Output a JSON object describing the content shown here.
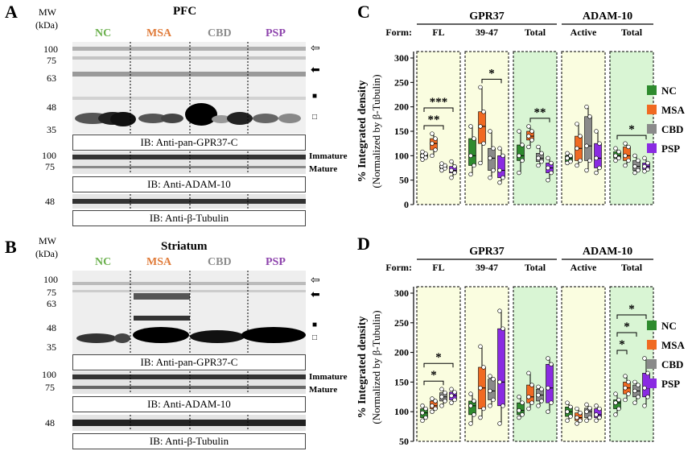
{
  "panel_A": {
    "letter": "A",
    "mw_label": "MW",
    "kda_label": "(kDa)",
    "title": "PFC",
    "groups": [
      {
        "label": "NC",
        "color": "#6ab04c"
      },
      {
        "label": "MSA",
        "color": "#e07b39"
      },
      {
        "label": "CBD",
        "color": "#8c8c8c"
      },
      {
        "label": "PSP",
        "color": "#8e44ad"
      }
    ],
    "mw_main": [
      "100",
      "75",
      "63",
      "48",
      "35"
    ],
    "mw_adam": [
      "100",
      "75"
    ],
    "mw_tub": [
      "48"
    ],
    "ib_main": "IB: Anti-pan-GPR37-C",
    "ib_adam": "IB: Anti-ADAM-10",
    "ib_tub": "IB: Anti-β-Tubulin",
    "immature": "Immature",
    "mature": "Mature"
  },
  "panel_B": {
    "letter": "B",
    "mw_label": "MW",
    "kda_label": "(kDa)",
    "title": "Striatum",
    "groups": [
      {
        "label": "NC",
        "color": "#6ab04c"
      },
      {
        "label": "MSA",
        "color": "#e07b39"
      },
      {
        "label": "CBD",
        "color": "#8c8c8c"
      },
      {
        "label": "PSP",
        "color": "#8e44ad"
      }
    ],
    "mw_main": [
      "100",
      "75",
      "63",
      "48",
      "35"
    ],
    "mw_adam": [
      "100",
      "75"
    ],
    "mw_tub": [
      "48"
    ],
    "ib_main": "IB: Anti-pan-GPR37-C",
    "ib_adam": "IB: Anti-ADAM-10",
    "ib_tub": "IB: Anti-β-Tubulin",
    "immature": "Immature",
    "mature": "Mature"
  },
  "markers": [
    "⇦",
    "⬅",
    "■",
    "□"
  ],
  "chart_data": [
    {
      "panel": "C",
      "type": "box",
      "ylabel": "% Integrated density",
      "ylabel2": "(Normalized by β-Tubulin)",
      "ylim": [
        0,
        300
      ],
      "yticks": [
        0,
        50,
        100,
        150,
        200,
        250,
        300
      ],
      "form_label": "Form:",
      "header_groups": [
        {
          "label": "GPR37",
          "span": [
            0,
            2
          ]
        },
        {
          "label": "ADAM-10",
          "span": [
            3,
            4
          ]
        }
      ],
      "forms": [
        "FL",
        "39-47",
        "Total",
        "Active",
        "Total"
      ],
      "form_bg": [
        "#fafde0",
        "#fafde0",
        "#d9f5d4",
        "#fafde0",
        "#d9f5d4"
      ],
      "series": [
        {
          "name": "NC",
          "color": "#2e8b2e"
        },
        {
          "name": "MSA",
          "color": "#f06a22"
        },
        {
          "name": "CBD",
          "color": "#8a8a8a"
        },
        {
          "name": "PSP",
          "color": "#8a2be2"
        }
      ],
      "boxes": [
        [
          [
            92,
            96,
            100,
            104,
            108
          ],
          [
            100,
            112,
            125,
            135,
            145
          ],
          [
            70,
            74,
            78,
            80,
            84
          ],
          [
            55,
            65,
            70,
            78,
            88
          ]
        ],
        [
          [
            62,
            80,
            100,
            135,
            160
          ],
          [
            85,
            125,
            160,
            190,
            240
          ],
          [
            55,
            70,
            95,
            115,
            150
          ],
          [
            45,
            55,
            70,
            100,
            115
          ]
        ],
        [
          [
            65,
            90,
            100,
            122,
            150
          ],
          [
            118,
            132,
            140,
            150,
            160
          ],
          [
            80,
            88,
            95,
            105,
            118
          ],
          [
            50,
            65,
            75,
            85,
            95
          ]
        ],
        [
          [
            85,
            88,
            95,
            100,
            105
          ],
          [
            80,
            90,
            115,
            140,
            165
          ],
          [
            70,
            90,
            120,
            180,
            200
          ],
          [
            65,
            75,
            95,
            125,
            150
          ]
        ],
        [
          [
            90,
            95,
            100,
            108,
            115
          ],
          [
            80,
            90,
            100,
            118,
            125
          ],
          [
            65,
            70,
            78,
            90,
            100
          ],
          [
            68,
            72,
            78,
            85,
            95
          ]
        ]
      ],
      "significance": [
        {
          "form": 0,
          "from": 0,
          "to": 3,
          "level": 1,
          "label": "***"
        },
        {
          "form": 0,
          "from": 0,
          "to": 2,
          "level": 0,
          "label": "**"
        },
        {
          "form": 1,
          "from": 1,
          "to": 3,
          "level": 0,
          "label": "*"
        },
        {
          "form": 2,
          "from": 1,
          "to": 3,
          "level": 0,
          "label": "**"
        },
        {
          "form": 4,
          "from": 0,
          "to": 3,
          "level": 0,
          "label": "*"
        }
      ]
    },
    {
      "panel": "D",
      "type": "box",
      "ylabel": "% Integrated density",
      "ylabel2": "(Normalized by β-Tubulin)",
      "ylim": [
        50,
        300
      ],
      "yticks": [
        50,
        100,
        150,
        200,
        250,
        300
      ],
      "form_label": "Form:",
      "header_groups": [
        {
          "label": "GPR37",
          "span": [
            0,
            2
          ]
        },
        {
          "label": "ADAM-10",
          "span": [
            3,
            4
          ]
        }
      ],
      "forms": [
        "FL",
        "39-47",
        "Total",
        "Active",
        "Total"
      ],
      "form_bg": [
        "#fafde0",
        "#fafde0",
        "#d9f5d4",
        "#fafde0",
        "#d9f5d4"
      ],
      "series": [
        {
          "name": "NC",
          "color": "#2e8b2e"
        },
        {
          "name": "MSA",
          "color": "#f06a22"
        },
        {
          "name": "CBD",
          "color": "#8a8a8a"
        },
        {
          "name": "PSP",
          "color": "#8a2be2"
        }
      ],
      "boxes": [
        [
          [
            85,
            90,
            98,
            105,
            110
          ],
          [
            100,
            105,
            110,
            118,
            122
          ],
          [
            110,
            118,
            125,
            132,
            138
          ],
          [
            115,
            120,
            127,
            133,
            138
          ]
        ],
        [
          [
            80,
            95,
            110,
            118,
            130
          ],
          [
            90,
            105,
            140,
            175,
            210
          ],
          [
            110,
            120,
            135,
            155,
            160
          ],
          [
            80,
            110,
            150,
            240,
            270
          ]
        ],
        [
          [
            90,
            95,
            102,
            115,
            125
          ],
          [
            105,
            115,
            125,
            145,
            165
          ],
          [
            110,
            118,
            128,
            138,
            142
          ],
          [
            100,
            115,
            140,
            180,
            190
          ]
        ],
        [
          [
            85,
            92,
            100,
            108,
            115
          ],
          [
            80,
            85,
            90,
            98,
            105
          ],
          [
            85,
            90,
            100,
            106,
            112
          ],
          [
            85,
            90,
            95,
            105,
            110
          ]
        ],
        [
          [
            95,
            105,
            115,
            120,
            130
          ],
          [
            120,
            130,
            140,
            150,
            160
          ],
          [
            115,
            125,
            135,
            145,
            150
          ],
          [
            110,
            125,
            140,
            165,
            190
          ]
        ]
      ],
      "significance": [
        {
          "form": 0,
          "from": 0,
          "to": 3,
          "level": 1,
          "label": "*"
        },
        {
          "form": 0,
          "from": 0,
          "to": 2,
          "level": 0,
          "label": "*"
        },
        {
          "form": 4,
          "from": 0,
          "to": 3,
          "level": 2,
          "label": "*"
        },
        {
          "form": 4,
          "from": 0,
          "to": 2,
          "level": 1,
          "label": "*"
        },
        {
          "form": 4,
          "from": 0,
          "to": 1,
          "level": 0,
          "label": "*"
        }
      ]
    }
  ]
}
